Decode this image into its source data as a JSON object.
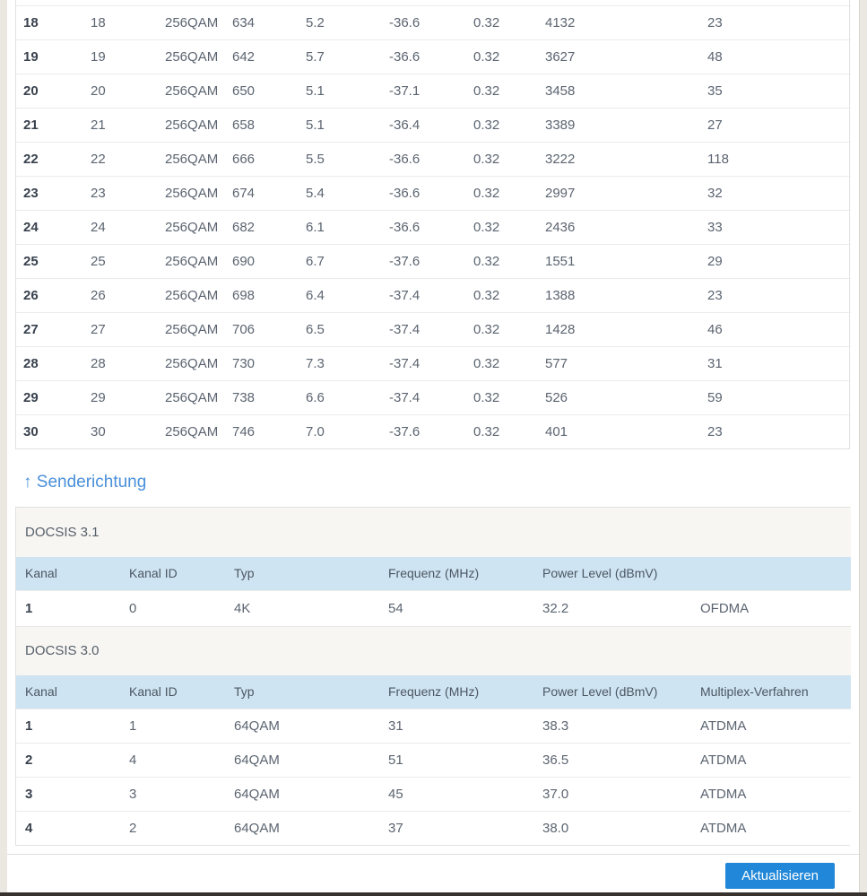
{
  "colors": {
    "accent_blue": "#4a90d9",
    "button_blue": "#2187d8",
    "header_row_bg": "#cfe4f2",
    "section_row_bg": "#f7f6f3",
    "page_margin_bg": "#ebe8e2",
    "bottom_bar": "#37322e"
  },
  "downstream_table": {
    "rows": [
      [
        "18",
        "18",
        "256QAM",
        "634",
        "5.2",
        "-36.6",
        "0.32",
        "4132",
        "23"
      ],
      [
        "19",
        "19",
        "256QAM",
        "642",
        "5.7",
        "-36.6",
        "0.32",
        "3627",
        "48"
      ],
      [
        "20",
        "20",
        "256QAM",
        "650",
        "5.1",
        "-37.1",
        "0.32",
        "3458",
        "35"
      ],
      [
        "21",
        "21",
        "256QAM",
        "658",
        "5.1",
        "-36.4",
        "0.32",
        "3389",
        "27"
      ],
      [
        "22",
        "22",
        "256QAM",
        "666",
        "5.5",
        "-36.6",
        "0.32",
        "3222",
        "118"
      ],
      [
        "23",
        "23",
        "256QAM",
        "674",
        "5.4",
        "-36.6",
        "0.32",
        "2997",
        "32"
      ],
      [
        "24",
        "24",
        "256QAM",
        "682",
        "6.1",
        "-36.6",
        "0.32",
        "2436",
        "33"
      ],
      [
        "25",
        "25",
        "256QAM",
        "690",
        "6.7",
        "-37.6",
        "0.32",
        "1551",
        "29"
      ],
      [
        "26",
        "26",
        "256QAM",
        "698",
        "6.4",
        "-37.4",
        "0.32",
        "1388",
        "23"
      ],
      [
        "27",
        "27",
        "256QAM",
        "706",
        "6.5",
        "-37.4",
        "0.32",
        "1428",
        "46"
      ],
      [
        "28",
        "28",
        "256QAM",
        "730",
        "7.3",
        "-37.4",
        "0.32",
        "577",
        "31"
      ],
      [
        "29",
        "29",
        "256QAM",
        "738",
        "6.6",
        "-37.4",
        "0.32",
        "526",
        "59"
      ],
      [
        "30",
        "30",
        "256QAM",
        "746",
        "7.0",
        "-37.6",
        "0.32",
        "401",
        "23"
      ]
    ]
  },
  "upstream": {
    "heading": "↑ Senderichtung",
    "docsis31": {
      "section_label": "DOCSIS 3.1",
      "headers": [
        "Kanal",
        "Kanal ID",
        "Typ",
        "Frequenz (MHz)",
        "Power Level (dBmV)",
        ""
      ],
      "rows": [
        [
          "1",
          "0",
          "4K",
          "54",
          "32.2",
          "OFDMA"
        ]
      ]
    },
    "docsis30": {
      "section_label": "DOCSIS 3.0",
      "headers": [
        "Kanal",
        "Kanal ID",
        "Typ",
        "Frequenz (MHz)",
        "Power Level (dBmV)",
        "Multiplex-Verfahren"
      ],
      "rows": [
        [
          "1",
          "1",
          "64QAM",
          "31",
          "38.3",
          "ATDMA"
        ],
        [
          "2",
          "4",
          "64QAM",
          "51",
          "36.5",
          "ATDMA"
        ],
        [
          "3",
          "3",
          "64QAM",
          "45",
          "37.0",
          "ATDMA"
        ],
        [
          "4",
          "2",
          "64QAM",
          "37",
          "38.0",
          "ATDMA"
        ]
      ]
    }
  },
  "footer": {
    "refresh_button_label": "Aktualisieren"
  }
}
